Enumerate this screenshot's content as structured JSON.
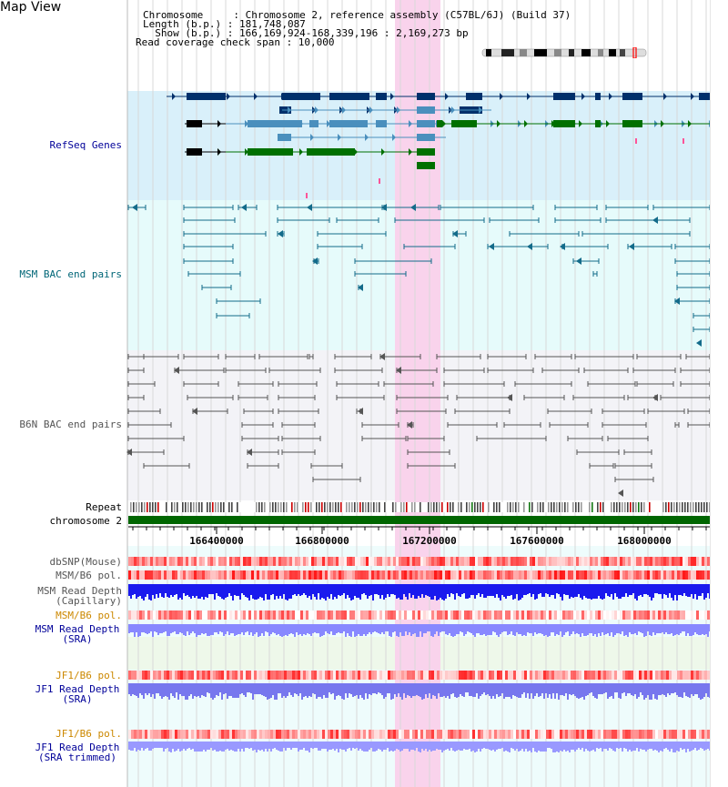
{
  "view_title": "Map View",
  "info": {
    "chromosome": "Chromosome     : Chromosome 2, reference assembly (C57BL/6J) (Build 37)",
    "length": "Length (b.p.) : 181,748,087",
    "show": "  Show (b.p.) : 166,169,924-168,339,196 : 2,169,273 bp",
    "coverage": "Read coverage check span : 10,000"
  },
  "tracks": {
    "refseq": "RefSeq Genes",
    "msm_bac": "MSM BAC end pairs",
    "b6n_bac": "B6N BAC end pairs",
    "repeat": "Repeat",
    "chromosome": "chromosome 2",
    "dbsnp": "dbSNP(Mouse)",
    "msm_b6_pol": "MSM/B6 pol.",
    "msm_depth_cap": "MSM Read Depth\n(Capillary)",
    "msm_b6_pol_2": "MSM/B6 pol.",
    "msm_depth_sra": "MSM Read Depth\n(SRA)",
    "jf1_b6_pol": "JF1/B6 pol.",
    "jf1_depth_sra": "JF1 Read Depth\n(SRA)",
    "jf1_b6_pol_2": "JF1/B6 pol.",
    "jf1_depth_trim": "JF1 Read Depth\n(SRA trimmed)"
  },
  "axis_ticks": [
    "166400000",
    "166800000",
    "167200000",
    "167600000",
    "168000000"
  ],
  "colors": {
    "refseq_bg": "#d9f0fa",
    "msm_bg": "#e6fbfb",
    "b6n_bg": "#f3f3f7",
    "highlight": "#f9d3ec",
    "chromosome_bar": "#006600",
    "label_blue": "#000099",
    "label_teal": "#006677",
    "label_orange": "#cc8800",
    "gene_dark": "#00306b",
    "gene_mid": "#4a8fbd",
    "gene_green": "#007000",
    "gene_black": "#000000",
    "bac_teal": "#136b8a",
    "bac_gray": "#555555",
    "depth_blue": "#1a1aee",
    "depth_light": "#8888ff"
  }
}
